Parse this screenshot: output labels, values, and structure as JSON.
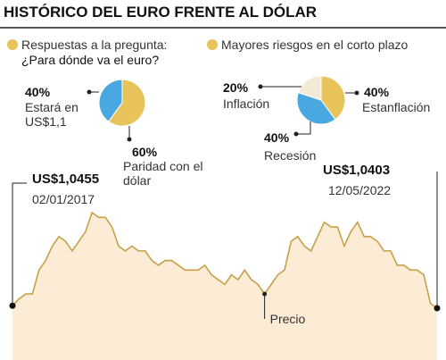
{
  "title": "HISTÓRICO DEL EURO FRENTE AL DÓLAR",
  "chart_data": [
    {
      "type": "pie",
      "title": "Respuestas a la pregunta:",
      "subtitle": "¿Para dónde va el euro?",
      "categories": [
        "Paridad con el dólar",
        "Estará en US$1,1"
      ],
      "values": [
        60,
        40
      ],
      "value_labels": [
        "60%",
        "40%"
      ],
      "colors": [
        "#e8c35a",
        "#4aa8e0"
      ]
    },
    {
      "type": "pie",
      "title": "Mayores riesgos en el corto plazo",
      "categories": [
        "Estanflación",
        "Recesión",
        "Inflación"
      ],
      "values": [
        40,
        40,
        20
      ],
      "value_labels": [
        "40%",
        "40%",
        "20%"
      ],
      "colors": [
        "#e8c35a",
        "#4aa8e0",
        "#f3ead3"
      ]
    },
    {
      "type": "line",
      "x": [
        "02/01/2017",
        null,
        null,
        null,
        null,
        null,
        null,
        null,
        null,
        null,
        null,
        null,
        null,
        null,
        null,
        null,
        null,
        null,
        null,
        null,
        null,
        null,
        null,
        null,
        null,
        null,
        null,
        null,
        null,
        null,
        null,
        null,
        null,
        null,
        null,
        null,
        null,
        null,
        null,
        null,
        null,
        null,
        null,
        null,
        null,
        null,
        null,
        null,
        null,
        null,
        null,
        null,
        null,
        null,
        null,
        null,
        null,
        null,
        null,
        null,
        null,
        null,
        null,
        null,
        "12/05/2022"
      ],
      "series": [
        {
          "name": "Precio",
          "color": "#c9a04a",
          "values": [
            1.0455,
            1.06,
            1.07,
            1.07,
            1.12,
            1.14,
            1.17,
            1.19,
            1.18,
            1.16,
            1.18,
            1.2,
            1.24,
            1.23,
            1.23,
            1.21,
            1.17,
            1.16,
            1.17,
            1.16,
            1.16,
            1.14,
            1.13,
            1.14,
            1.14,
            1.13,
            1.12,
            1.12,
            1.12,
            1.13,
            1.11,
            1.1,
            1.09,
            1.11,
            1.1,
            1.12,
            1.1,
            1.09,
            1.07,
            1.09,
            1.11,
            1.12,
            1.18,
            1.19,
            1.17,
            1.16,
            1.19,
            1.22,
            1.21,
            1.21,
            1.17,
            1.2,
            1.22,
            1.19,
            1.19,
            1.18,
            1.16,
            1.16,
            1.13,
            1.13,
            1.12,
            1.12,
            1.11,
            1.05,
            1.0403
          ],
          "value_labels": [
            "US$1,0455",
            null,
            null,
            null,
            null,
            null,
            null,
            null,
            null,
            null,
            null,
            null,
            null,
            null,
            null,
            null,
            null,
            null,
            null,
            null,
            null,
            null,
            null,
            null,
            null,
            null,
            null,
            null,
            null,
            null,
            null,
            null,
            null,
            null,
            null,
            null,
            null,
            null,
            null,
            null,
            null,
            null,
            null,
            null,
            null,
            null,
            null,
            null,
            null,
            null,
            null,
            null,
            null,
            null,
            null,
            null,
            null,
            null,
            null,
            null,
            null,
            null,
            null,
            null,
            "US$1,0403"
          ]
        }
      ]
    }
  ]
}
